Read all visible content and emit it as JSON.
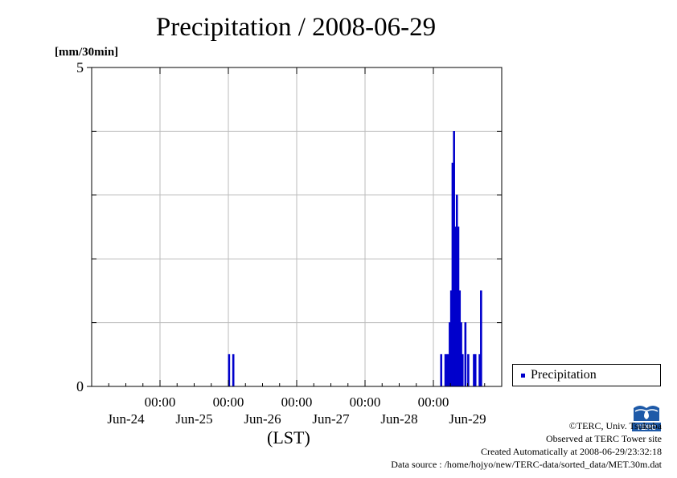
{
  "colors": {
    "series": "#0000cc",
    "grid": "#bbbbbb",
    "axis": "#000000"
  },
  "chart_data": {
    "type": "bar",
    "title": "Precipitation / 2008-06-29",
    "ylabel": "[mm/30min]",
    "xlabel": "(LST)",
    "ylim": [
      0,
      5
    ],
    "y_tick_labels": [
      {
        "value": 0,
        "label": "0"
      },
      {
        "value": 5,
        "label": "5"
      }
    ],
    "y_grid_values": [
      1,
      2,
      3,
      4
    ],
    "x_range_hours": [
      0,
      144
    ],
    "x_ticks": [
      {
        "hour": 0,
        "time": "",
        "date": ""
      },
      {
        "hour": 24,
        "time": "00:00",
        "date": "Jun-24"
      },
      {
        "hour": 48,
        "time": "00:00",
        "date": "Jun-25"
      },
      {
        "hour": 72,
        "time": "00:00",
        "date": "Jun-26"
      },
      {
        "hour": 96,
        "time": "00:00",
        "date": "Jun-27"
      },
      {
        "hour": 120,
        "time": "00:00",
        "date": "Jun-28"
      },
      {
        "hour": 144,
        "time": "",
        "date": "Jun-29"
      }
    ],
    "grid": true,
    "legend_position": "right",
    "series": [
      {
        "name": "Precipitation",
        "bar_width_hours": 0.5,
        "points": [
          {
            "hour": 48.0,
            "value": 0.5
          },
          {
            "hour": 49.5,
            "value": 0.5
          },
          {
            "hour": 122.5,
            "value": 0.5
          },
          {
            "hour": 124.0,
            "value": 0.5
          },
          {
            "hour": 124.5,
            "value": 0.5
          },
          {
            "hour": 125.0,
            "value": 0.5
          },
          {
            "hour": 125.5,
            "value": 1.0
          },
          {
            "hour": 126.0,
            "value": 1.5
          },
          {
            "hour": 126.5,
            "value": 3.5
          },
          {
            "hour": 127.0,
            "value": 4.0
          },
          {
            "hour": 127.5,
            "value": 2.5
          },
          {
            "hour": 128.0,
            "value": 3.0
          },
          {
            "hour": 128.5,
            "value": 2.5
          },
          {
            "hour": 129.0,
            "value": 1.5
          },
          {
            "hour": 129.5,
            "value": 1.0
          },
          {
            "hour": 130.0,
            "value": 0.5
          },
          {
            "hour": 131.0,
            "value": 1.0
          },
          {
            "hour": 132.0,
            "value": 0.5
          },
          {
            "hour": 134.0,
            "value": 0.5
          },
          {
            "hour": 134.5,
            "value": 0.5
          },
          {
            "hour": 136.0,
            "value": 0.5
          },
          {
            "hour": 136.5,
            "value": 1.5
          }
        ]
      }
    ]
  },
  "credits": {
    "copyright": "©TERC, Univ. Tsukuba",
    "site": "Observed at TERC Tower site",
    "created": "Created Automatically at 2008-06-29/23:32:18",
    "source": "Data source : /home/hojyo/new/TERC-data/sorted_data/MET.30m.dat"
  },
  "logo": {
    "text": "TERC"
  }
}
